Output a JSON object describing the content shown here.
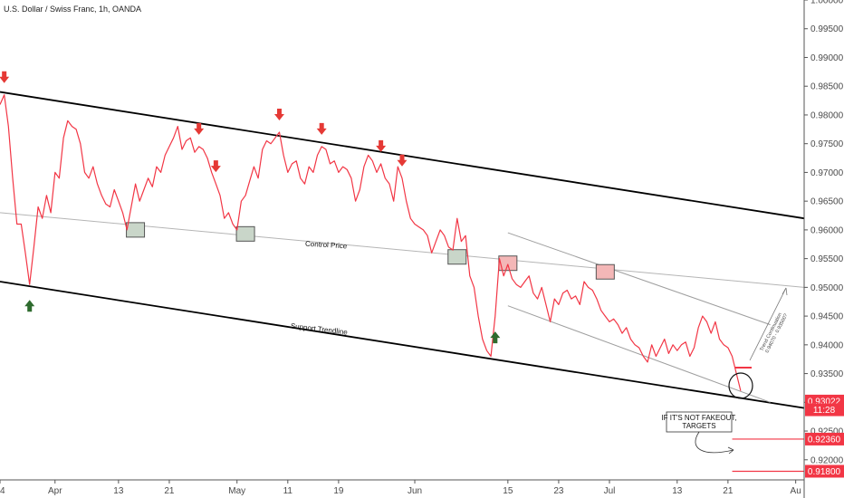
{
  "chart_data": {
    "type": "line",
    "title": "U.S. Dollar / Swiss Franc, 1h, OANDA",
    "ylim": [
      0.9165,
      1.0
    ],
    "xlim": [
      0,
      190
    ],
    "y_ticks": [
      "1.00000",
      "0.99500",
      "0.99000",
      "0.98500",
      "0.98000",
      "0.97500",
      "0.97000",
      "0.96500",
      "0.96000",
      "0.95500",
      "0.95000",
      "0.94500",
      "0.94000",
      "0.93500",
      "0.93000",
      "0.92500",
      "0.92000"
    ],
    "y_tick_values": [
      1.0,
      0.995,
      0.99,
      0.985,
      0.98,
      0.975,
      0.97,
      0.965,
      0.96,
      0.955,
      0.95,
      0.945,
      0.94,
      0.935,
      0.93,
      0.925,
      0.92
    ],
    "x_ticks": [
      {
        "label": "4",
        "x": 0
      },
      {
        "label": "Apr",
        "x": 13
      },
      {
        "label": "13",
        "x": 28
      },
      {
        "label": "21",
        "x": 40
      },
      {
        "label": "May",
        "x": 56
      },
      {
        "label": "11",
        "x": 68
      },
      {
        "label": "19",
        "x": 80
      },
      {
        "label": "Jun",
        "x": 98
      },
      {
        "label": "15",
        "x": 120
      },
      {
        "label": "23",
        "x": 132
      },
      {
        "label": "Jul",
        "x": 144
      },
      {
        "label": "13",
        "x": 160
      },
      {
        "label": "21",
        "x": 172
      },
      {
        "label": "Au",
        "x": 188
      }
    ],
    "series": [
      {
        "color": "#f23645",
        "x": [
          0,
          1,
          2,
          3,
          4,
          5,
          6,
          7,
          8,
          9,
          10,
          11,
          12,
          13,
          14,
          15,
          16,
          17,
          18,
          19,
          20,
          21,
          22,
          23,
          24,
          25,
          26,
          27,
          28,
          29,
          30,
          31,
          32,
          33,
          34,
          35,
          36,
          37,
          38,
          39,
          40,
          41,
          42,
          43,
          44,
          45,
          46,
          47,
          48,
          49,
          50,
          51,
          52,
          53,
          54,
          55,
          56,
          57,
          58,
          59,
          60,
          61,
          62,
          63,
          64,
          65,
          66,
          67,
          68,
          69,
          70,
          71,
          72,
          73,
          74,
          75,
          76,
          77,
          78,
          79,
          80,
          81,
          82,
          83,
          84,
          85,
          86,
          87,
          88,
          89,
          90,
          91,
          92,
          93,
          94,
          95,
          96,
          97,
          98,
          99,
          100,
          101,
          102,
          103,
          104,
          105,
          106,
          107,
          108,
          109,
          110,
          111,
          112,
          113,
          114,
          115,
          116,
          117,
          118,
          119,
          120,
          121,
          122,
          123,
          124,
          125,
          126,
          127,
          128,
          129,
          130,
          131,
          132,
          133,
          134,
          135,
          136,
          137,
          138,
          139,
          140,
          141,
          142,
          143,
          144,
          145,
          146,
          147,
          148,
          149,
          150,
          151,
          152,
          153,
          154,
          155,
          156,
          157,
          158,
          159,
          160,
          161,
          162,
          163,
          164,
          165,
          166,
          167,
          168,
          169,
          170,
          171,
          172,
          173,
          174,
          175
        ],
        "values": [
          0.9818,
          0.9835,
          0.978,
          0.969,
          0.961,
          0.961,
          0.956,
          0.9505,
          0.957,
          0.964,
          0.962,
          0.966,
          0.963,
          0.97,
          0.969,
          0.976,
          0.979,
          0.978,
          0.9775,
          0.975,
          0.97,
          0.969,
          0.971,
          0.968,
          0.966,
          0.9645,
          0.964,
          0.967,
          0.965,
          0.963,
          0.96,
          0.964,
          0.968,
          0.965,
          0.967,
          0.969,
          0.9675,
          0.971,
          0.97,
          0.973,
          0.9745,
          0.976,
          0.978,
          0.974,
          0.9755,
          0.976,
          0.9735,
          0.9745,
          0.974,
          0.9725,
          0.97,
          0.968,
          0.966,
          0.962,
          0.963,
          0.961,
          0.96,
          0.965,
          0.966,
          0.9685,
          0.971,
          0.969,
          0.974,
          0.9755,
          0.975,
          0.976,
          0.977,
          0.973,
          0.97,
          0.9715,
          0.972,
          0.969,
          0.968,
          0.971,
          0.97,
          0.973,
          0.9745,
          0.974,
          0.9715,
          0.972,
          0.97,
          0.971,
          0.9705,
          0.969,
          0.965,
          0.967,
          0.971,
          0.973,
          0.972,
          0.97,
          0.9715,
          0.969,
          0.968,
          0.965,
          0.971,
          0.969,
          0.965,
          0.962,
          0.961,
          0.9605,
          0.96,
          0.959,
          0.956,
          0.958,
          0.96,
          0.959,
          0.957,
          0.9565,
          0.962,
          0.958,
          0.959,
          0.952,
          0.95,
          0.945,
          0.941,
          0.939,
          0.938,
          0.945,
          0.955,
          0.952,
          0.954,
          0.9515,
          0.9505,
          0.95,
          0.951,
          0.952,
          0.949,
          0.948,
          0.95,
          0.947,
          0.944,
          0.948,
          0.947,
          0.949,
          0.9495,
          0.948,
          0.9485,
          0.947,
          0.951,
          0.95,
          0.9495,
          0.948,
          0.946,
          0.945,
          0.944,
          0.9445,
          0.9435,
          0.942,
          0.943,
          0.941,
          0.94,
          0.9395,
          0.938,
          0.937,
          0.94,
          0.938,
          0.9395,
          0.941,
          0.9385,
          0.94,
          0.939,
          0.94,
          0.9405,
          0.938,
          0.9395,
          0.943,
          0.945,
          0.944,
          0.942,
          0.944,
          0.941,
          0.94,
          0.9395,
          0.938,
          0.935,
          0.932
        ]
      }
    ],
    "trendlines": [
      {
        "name": "upper-channel",
        "color": "#000000",
        "from": {
          "x": 0,
          "y": 0.984
        },
        "to": {
          "x": 190,
          "y": 0.962
        }
      },
      {
        "name": "support-trendline",
        "color": "#000000",
        "from": {
          "x": 0,
          "y": 0.951
        },
        "to": {
          "x": 190,
          "y": 0.929
        }
      },
      {
        "name": "control-price",
        "color": "#b5b5b5",
        "from": {
          "x": 0,
          "y": 0.963
        },
        "to": {
          "x": 190,
          "y": 0.95
        }
      },
      {
        "name": "inner-upper",
        "color": "#9e9e9e",
        "from": {
          "x": 120,
          "y": 0.9595
        },
        "to": {
          "x": 182,
          "y": 0.9435
        }
      },
      {
        "name": "inner-lower",
        "color": "#9e9e9e",
        "from": {
          "x": 120,
          "y": 0.9468
        },
        "to": {
          "x": 182,
          "y": 0.93
        }
      }
    ],
    "annotations": {
      "control_price_label": "Control Price",
      "support_label": "Support Trendline",
      "fakeout_note": [
        "IF IT'S NOT FAKEOUT,",
        "TARGETS"
      ],
      "projection_text": [
        "Trend Continuation",
        "0.94070 - 0.93500?"
      ],
      "down_arrows_x": [
        1,
        47,
        51,
        66,
        76,
        90,
        95
      ],
      "up_arrows_x": [
        7,
        117
      ],
      "green_boxes": [
        {
          "x": 32,
          "y": 0.96
        },
        {
          "x": 58,
          "y": 0.9593
        },
        {
          "x": 108,
          "y": 0.9553
        }
      ],
      "red_boxes": [
        {
          "x": 120,
          "y": 0.9542
        },
        {
          "x": 143,
          "y": 0.9527
        }
      ]
    },
    "price_badges": [
      {
        "text": "0.93022",
        "value": 0.93022,
        "color": "#f23645"
      },
      {
        "text": "11:28",
        "value": 0.9287,
        "color": "#f23645"
      },
      {
        "text": "0.92360",
        "value": 0.9236,
        "color": "#f23645"
      },
      {
        "text": "0.91800",
        "value": 0.918,
        "color": "#f23645"
      }
    ],
    "target_lines": [
      0.9236,
      0.918
    ]
  }
}
